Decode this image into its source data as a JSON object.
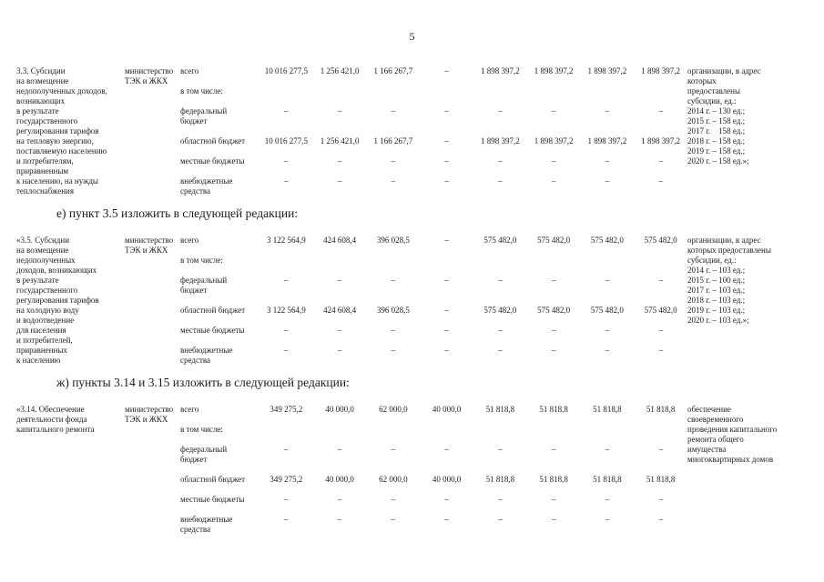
{
  "page": {
    "number": "5"
  },
  "sections": [
    {
      "heading": "",
      "description": "3.3. Субсидии\nна возмещение\nнедополученных доходов,\nвозникающих\nв результате\nгосударственного\nрегулирования тарифов\nна тепловую энергию,\nпоставляемую населению\nи потребителям,\nприравненным\nк населению, на нужды\nтеплоснабжения",
      "executor": "министерство\nТЭК и ЖКХ",
      "rows": [
        {
          "label": "всего",
          "values": [
            "10 016 277,5",
            "1 256 421,0",
            "1 166 267,7",
            "–",
            "1 898 397,2",
            "1 898 397,2",
            "1 898 397,2",
            "1 898 397,2"
          ]
        },
        {
          "label": "в том числе:",
          "values": []
        },
        {
          "label": "федеральный\nбюджет",
          "values": [
            "–",
            "–",
            "–",
            "–",
            "–",
            "–",
            "–",
            "–"
          ]
        },
        {
          "label": "областной бюджет",
          "values": [
            "10 016 277,5",
            "1 256 421,0",
            "1 166 267,7",
            "–",
            "1 898 397,2",
            "1 898 397,2",
            "1 898 397,2",
            "1 898 397,2"
          ]
        },
        {
          "label": "местные бюджеты",
          "values": [
            "–",
            "–",
            "–",
            "–",
            "–",
            "–",
            "–",
            "–"
          ]
        },
        {
          "label": "внебюджетные\nсредства",
          "values": [
            "–",
            "–",
            "–",
            "–",
            "–",
            "–",
            "–",
            "–"
          ]
        }
      ],
      "notes": "организации, в адрес\nкоторых\nпредоставлены\nсубсидии, ед.:\n2014 г. – 130 ед.;\n2015 г. – 158 ед.;\n2017 г.    158 ед.;\n2018 г. – 158 ед.;\n2019 г. – 158 ед.;\n2020 г. – 158 ед.»;"
    },
    {
      "heading": "е) пункт 3.5 изложить в следующей редакции:",
      "description": "«3.5. Субсидии\nна возмещение\nнедополученных\nдоходов, возникающих\nв результате\nгосударственного\nрегулирования тарифов\nна холодную воду\nи водоотведение\nдля населения\nи потребителей,\nприравненных\nк населению",
      "executor": "министерство\nТЭК и ЖКХ",
      "rows": [
        {
          "label": "всего",
          "values": [
            "3 122 564,9",
            "424 608,4",
            "396 028,5",
            "–",
            "575 482,0",
            "575 482,0",
            "575 482,0",
            "575 482,0"
          ]
        },
        {
          "label": "в том числе:",
          "values": []
        },
        {
          "label": "федеральный\nбюджет",
          "values": [
            "–",
            "–",
            "–",
            "–",
            "–",
            "–",
            "–",
            "–"
          ]
        },
        {
          "label": "областной бюджет",
          "values": [
            "3 122 564,9",
            "424 608,4",
            "396 028,5",
            "–",
            "575 482,0",
            "575 482,0",
            "575 482,0",
            "575 482,0"
          ]
        },
        {
          "label": "местные бюджеты",
          "values": [
            "–",
            "–",
            "–",
            "–",
            "–",
            "–",
            "–",
            "–"
          ]
        },
        {
          "label": "внебюджетные\nсредства",
          "values": [
            "–",
            "–",
            "–",
            "–",
            "–",
            "–",
            "–",
            "–"
          ]
        }
      ],
      "notes": "организации, в адрес\nкоторых предоставлены\nсубсидии, ед.:\n2014 г. – 103 ед.;\n2015 г. – 100 ед.;\n2017 г. – 103 ед.;\n2018 г. – 103 ед.;\n2019 г. – 103 ед.;\n2020 г. – 103 ед.»;"
    },
    {
      "heading": "ж) пункты 3.14 и 3.15 изложить в следующей редакции:",
      "description": "«3.14. Обеспечение\nдеятельности фонда\nкапитального ремонта",
      "executor": "министерство\nТЭК и ЖКХ",
      "rows": [
        {
          "label": "всего",
          "values": [
            "349 275,2",
            "40 000,0",
            "62 000,0",
            "40 000,0",
            "51 818,8",
            "51 818,8",
            "51 818,8",
            "51 818,8"
          ]
        },
        {
          "label": "в том числе:",
          "values": []
        },
        {
          "label": "федеральный\nбюджет",
          "values": [
            "–",
            "–",
            "–",
            "–",
            "–",
            "–",
            "–",
            "–"
          ]
        },
        {
          "label": "областной бюджет",
          "values": [
            "349 275,2",
            "40 000,0",
            "62 000,0",
            "40 000,0",
            "51 818,8",
            "51 818,8",
            "51 818,8",
            "51 818,8"
          ]
        },
        {
          "label": "местные бюджеты",
          "values": [
            "–",
            "–",
            "–",
            "–",
            "–",
            "–",
            "–",
            "–"
          ]
        },
        {
          "label": "внебюджетные\nсредства",
          "values": [
            "–",
            "–",
            "–",
            "–",
            "–",
            "–",
            "–",
            "–"
          ]
        }
      ],
      "notes": "обеспечение\nсвоевременного\nпроведения капитального\nремонта общего\nимущества\nмногоквартирных домов"
    }
  ]
}
